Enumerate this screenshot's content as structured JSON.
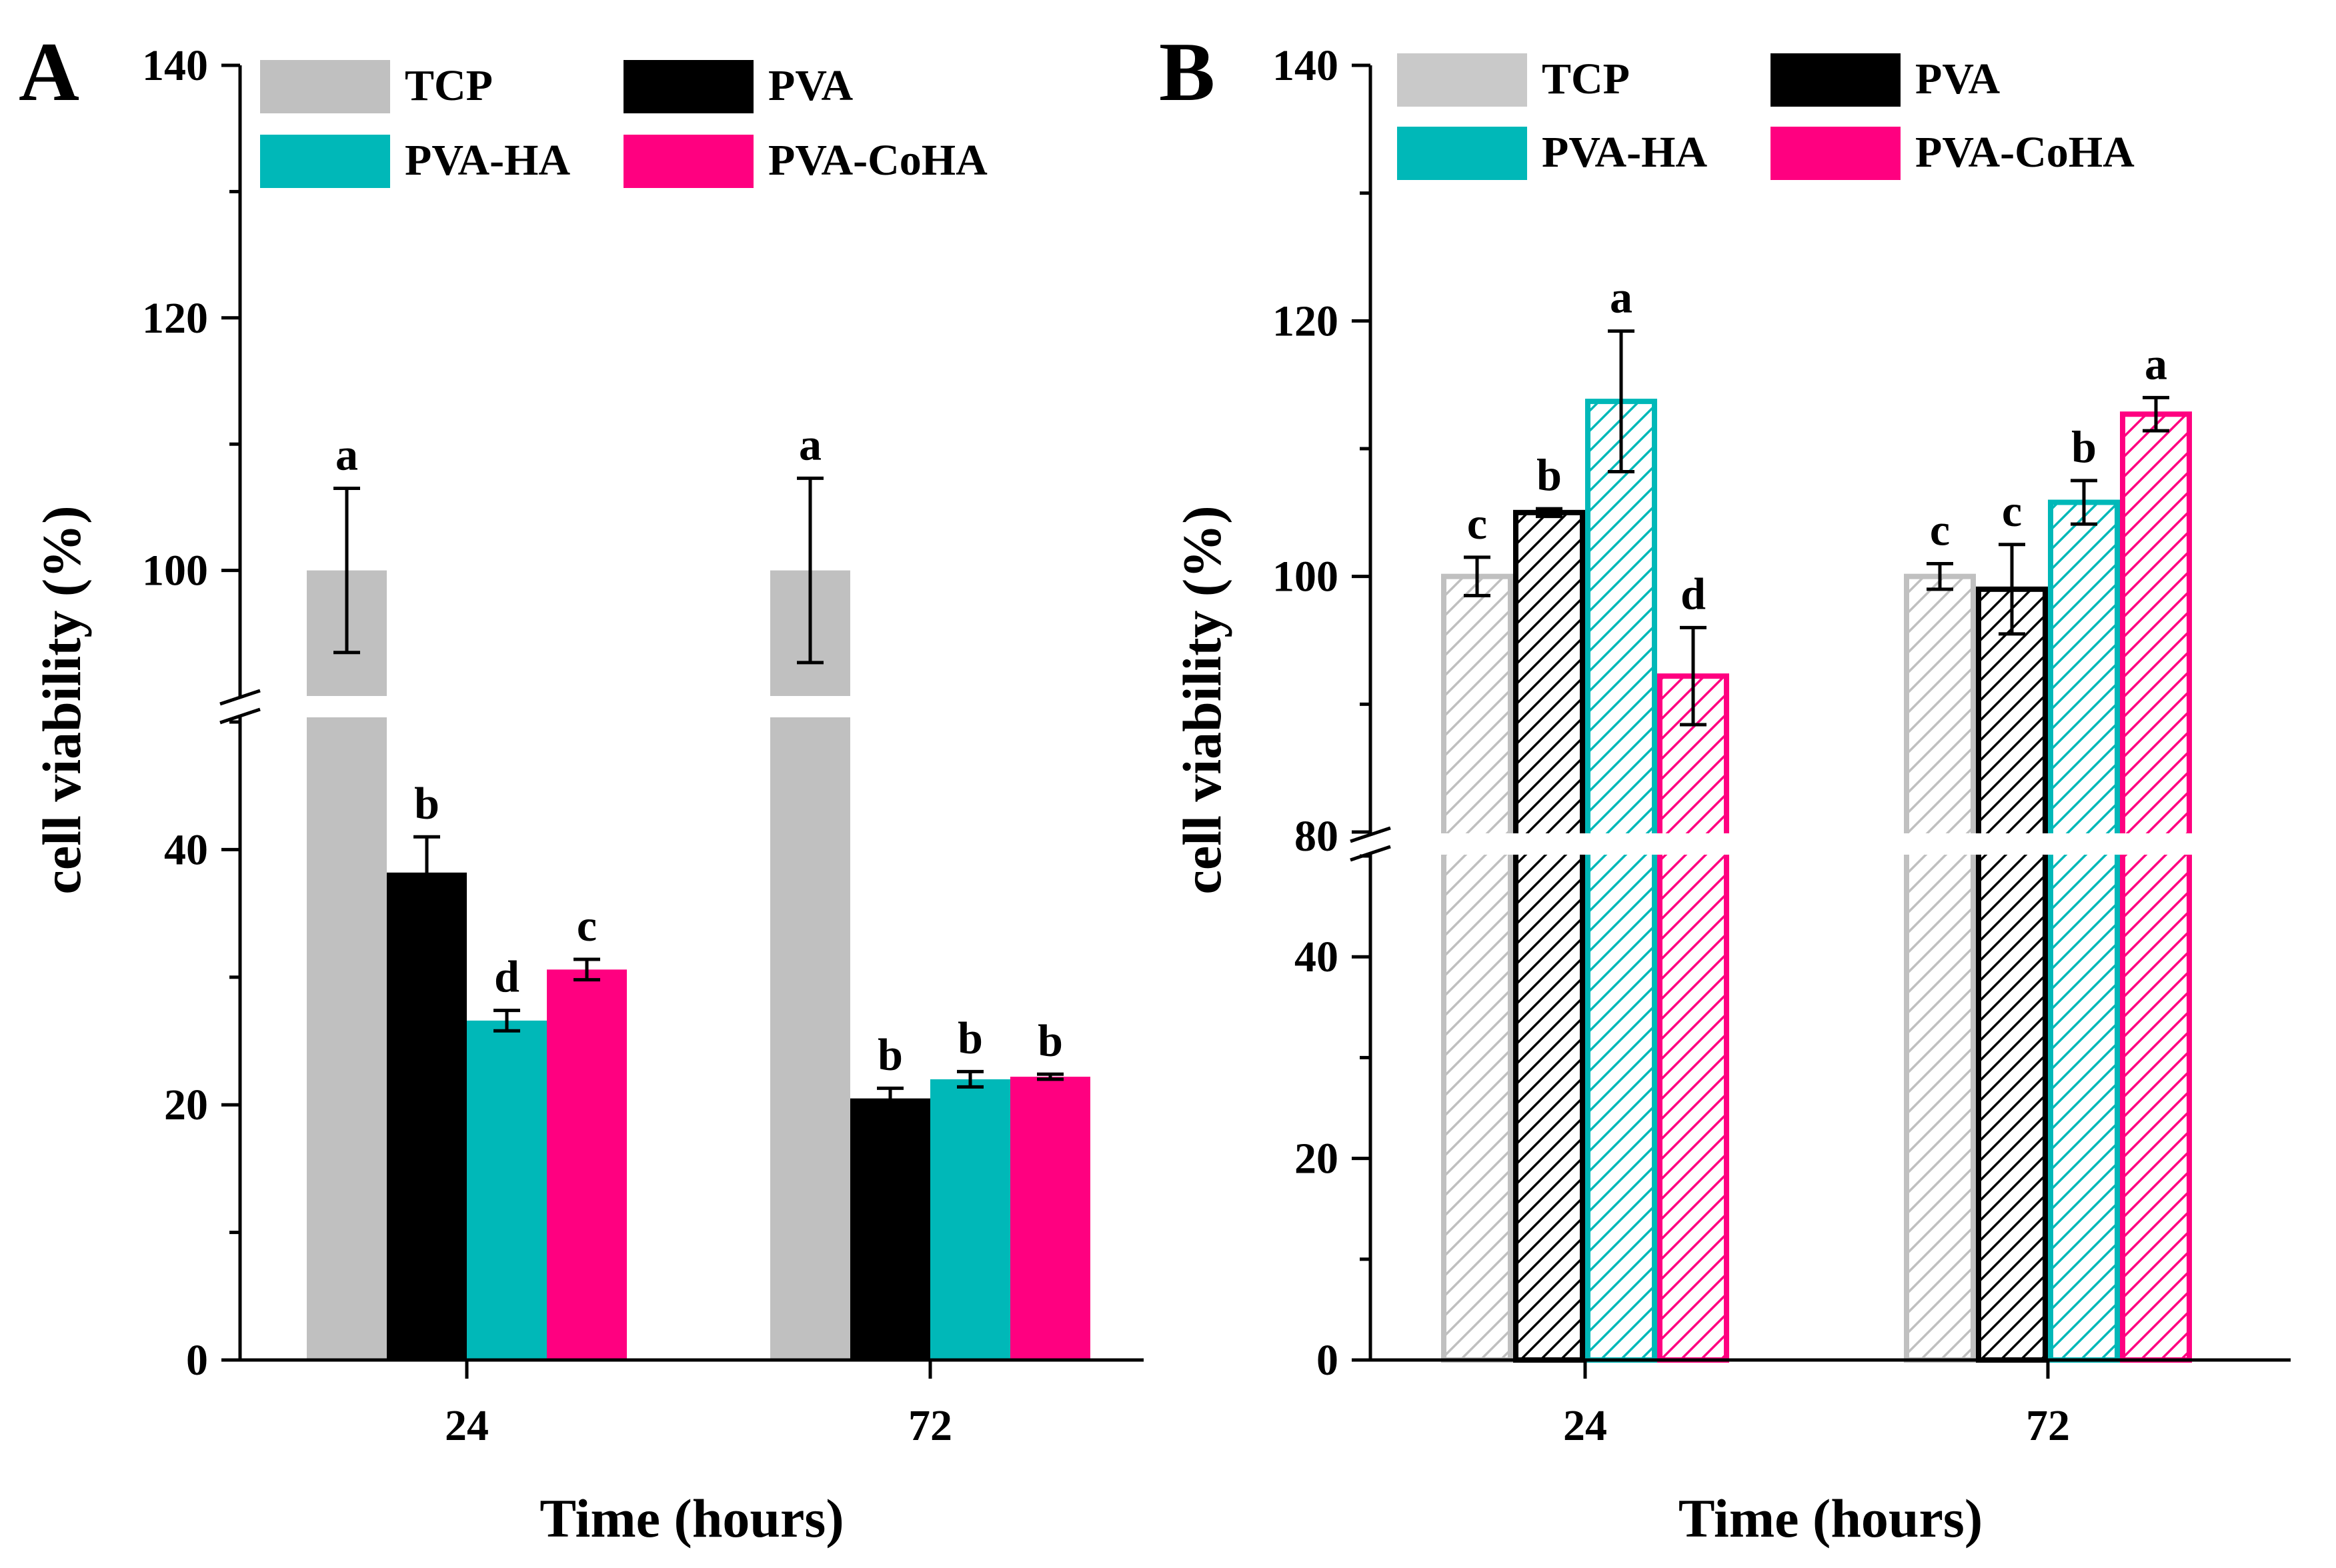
{
  "chart_data": [
    {
      "panel": "A",
      "type": "bar",
      "style": "solid",
      "xlabel": "Time (hours)",
      "ylabel": "cell viability (%)",
      "categories": [
        "24",
        "72"
      ],
      "axis_break": {
        "lower_range": [
          0,
          50
        ],
        "upper_range": [
          90,
          140
        ]
      },
      "yticks_lower": [
        0,
        20,
        40
      ],
      "yticks_upper": [
        100,
        120,
        140
      ],
      "legend": [
        "TCP",
        "PVA",
        "PVA-HA",
        "PVA-CoHA"
      ],
      "series": [
        {
          "name": "TCP",
          "color": "#c0c0c0",
          "values": [
            100,
            100
          ],
          "errors": [
            6.5,
            7.3
          ],
          "labels": [
            "a",
            "a"
          ]
        },
        {
          "name": "PVA",
          "color": "#000000",
          "values": [
            38.2,
            20.5
          ],
          "errors": [
            2.8,
            0.8
          ],
          "labels": [
            "b",
            "b"
          ]
        },
        {
          "name": "PVA-HA",
          "color": "#00b8b8",
          "values": [
            26.6,
            22
          ],
          "errors": [
            0.8,
            0.6
          ],
          "labels": [
            "d",
            "b"
          ]
        },
        {
          "name": "PVA-CoHA",
          "color": "#ff0080",
          "values": [
            30.6,
            22.2
          ],
          "errors": [
            0.8,
            0.2
          ],
          "labels": [
            "c",
            "b"
          ]
        }
      ]
    },
    {
      "panel": "B",
      "type": "bar",
      "style": "hatched",
      "xlabel": "Time (hours)",
      "ylabel": "cell viability (%)",
      "categories": [
        "24",
        "72"
      ],
      "axis_break": {
        "lower_range": [
          0,
          50
        ],
        "upper_range": [
          80,
          140
        ]
      },
      "yticks_lower": [
        0,
        20,
        40
      ],
      "yticks_upper": [
        80,
        100,
        120,
        140
      ],
      "legend": [
        "TCP",
        "PVA",
        "PVA-HA",
        "PVA-CoHA"
      ],
      "series": [
        {
          "name": "TCP",
          "color": "#c0c0c0",
          "values": [
            100,
            100
          ],
          "errors": [
            1.5,
            1
          ],
          "labels": [
            "c",
            "c"
          ]
        },
        {
          "name": "PVA",
          "color": "#000000",
          "values": [
            105,
            99
          ],
          "errors": [
            0.3,
            3.5
          ],
          "labels": [
            "b",
            "c"
          ]
        },
        {
          "name": "PVA-HA",
          "color": "#00b8b8",
          "values": [
            113.7,
            105.8
          ],
          "errors": [
            5.5,
            1.7
          ],
          "labels": [
            "a",
            "b"
          ]
        },
        {
          "name": "PVA-CoHA",
          "color": "#ff0080",
          "values": [
            92.2,
            112.7
          ],
          "errors": [
            3.8,
            1.3
          ],
          "labels": [
            "d",
            "a"
          ]
        }
      ]
    }
  ]
}
